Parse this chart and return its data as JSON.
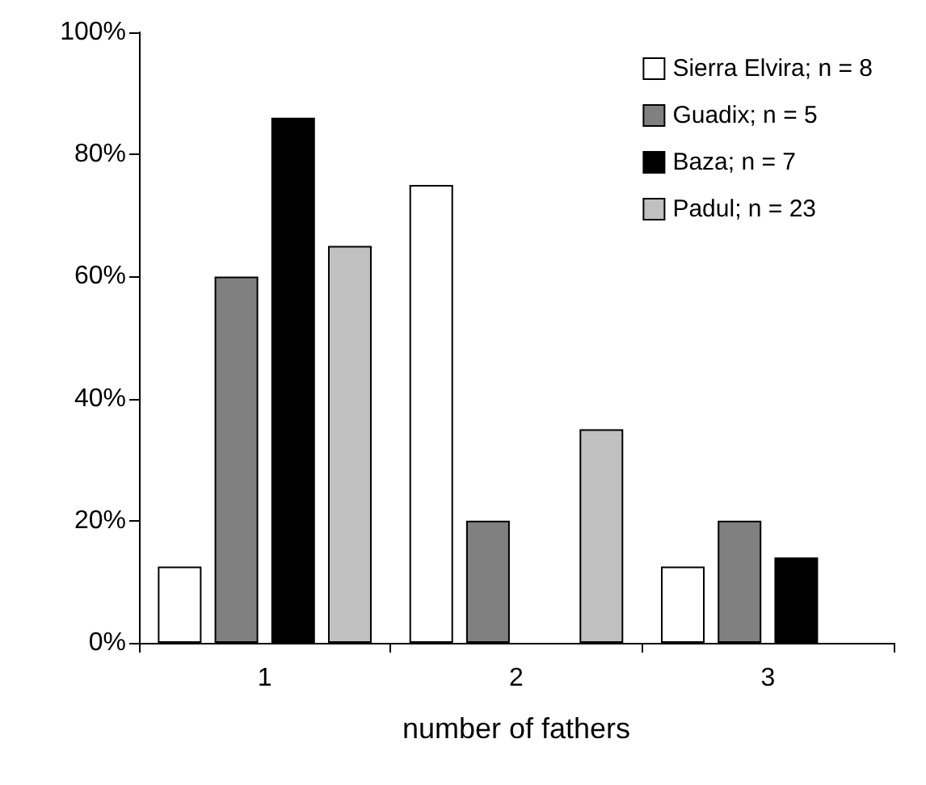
{
  "chart_data": {
    "type": "bar",
    "xlabel": "number of fathers",
    "categories": [
      "1",
      "2",
      "3"
    ],
    "series": [
      {
        "name": "Sierra Elvira; n = 8",
        "color": "#ffffff",
        "values": [
          12.5,
          75,
          12.5
        ]
      },
      {
        "name": "Guadix; n = 5",
        "color": "#808080",
        "values": [
          60,
          20,
          20
        ]
      },
      {
        "name": "Baza; n = 7",
        "color": "#000000",
        "values": [
          86,
          null,
          14
        ]
      },
      {
        "name": "Padul; n = 23",
        "color": "#c0c0c0",
        "values": [
          65,
          35,
          null
        ]
      }
    ],
    "ylim": [
      0,
      100
    ],
    "yticks": [
      {
        "value": 0,
        "label": "0%"
      },
      {
        "value": 20,
        "label": "20%"
      },
      {
        "value": 40,
        "label": "40%"
      },
      {
        "value": 60,
        "label": "60%"
      },
      {
        "value": 80,
        "label": "80%"
      },
      {
        "value": 100,
        "label": "100%"
      }
    ],
    "grid": false,
    "legend": "top right"
  }
}
